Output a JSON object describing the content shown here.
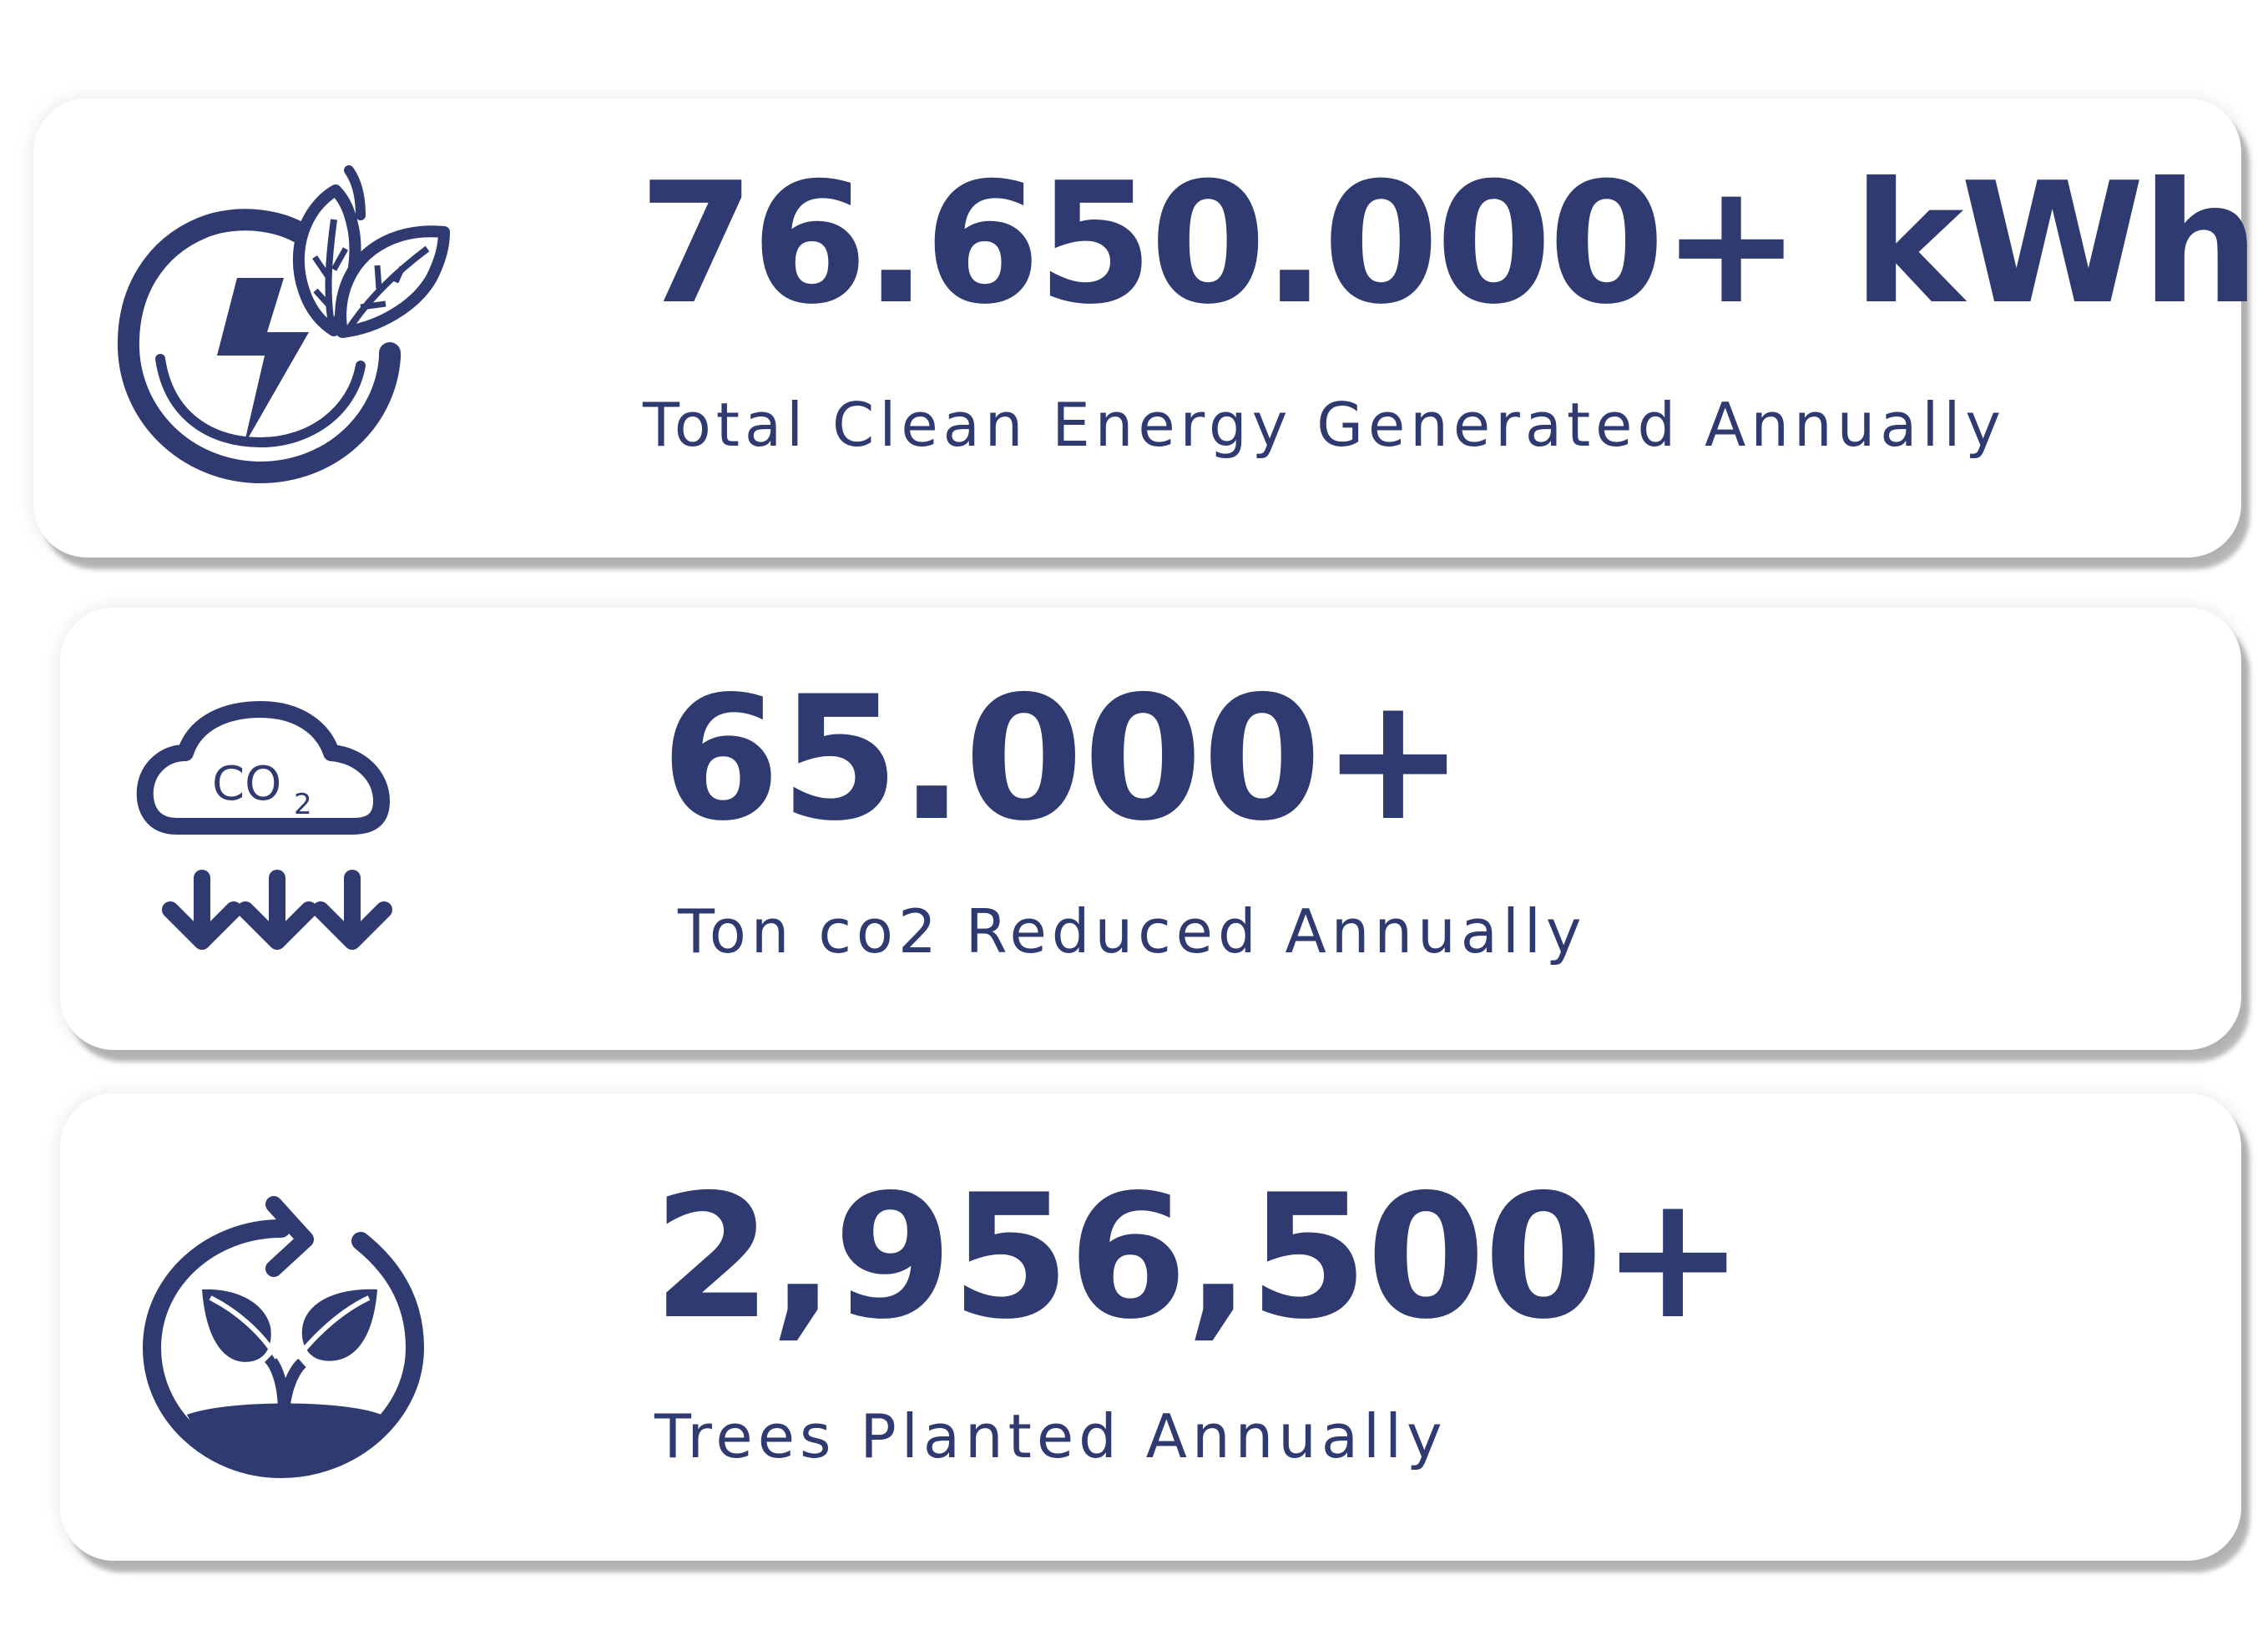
{
  "colors": {
    "primary": "#2e3a70",
    "card_background": "#ffffff"
  },
  "stats": [
    {
      "icon": "lightning-leaf-icon",
      "value": "76.650.000+ kWh",
      "label": "Total Clean Energy Generated Annually"
    },
    {
      "icon": "co2-cloud-icon",
      "icon_text": "CO2",
      "value": "65.000+",
      "label": "Ton co2 Reduced Annually"
    },
    {
      "icon": "sprout-cycle-icon",
      "value": "2,956,500+",
      "label": "Trees Planted Annually"
    }
  ]
}
